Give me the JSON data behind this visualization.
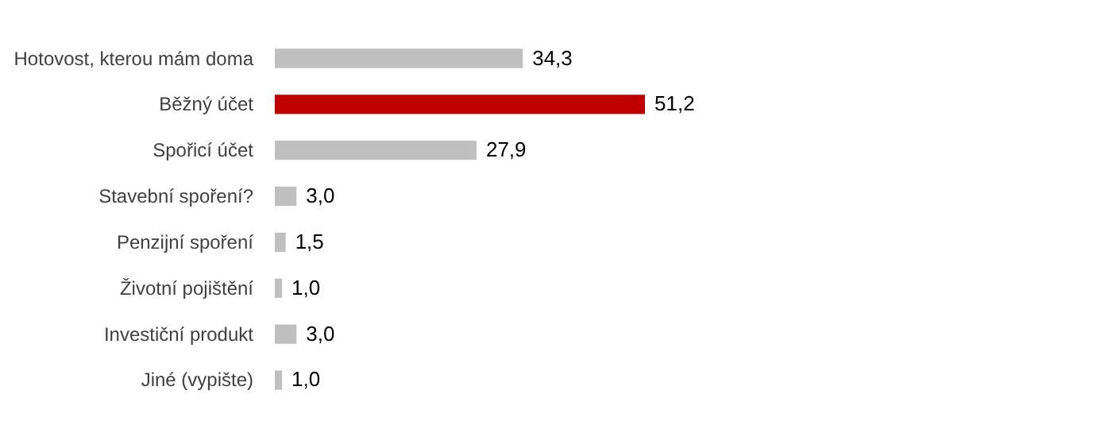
{
  "chart_data": {
    "type": "bar",
    "orientation": "horizontal",
    "categories": [
      "Hotovost, kterou mám doma",
      "Běžný účet",
      "Spořicí účet",
      "Stavební spoření?",
      "Penzijní spoření",
      "Životní pojištění",
      "Investiční produkt",
      "Jiné (vypište)"
    ],
    "values": [
      34.3,
      51.2,
      27.9,
      3.0,
      1.5,
      1.0,
      3.0,
      1.0
    ],
    "colors": [
      "#bfbfbf",
      "#c00000",
      "#bfbfbf",
      "#bfbfbf",
      "#bfbfbf",
      "#bfbfbf",
      "#bfbfbf",
      "#bfbfbf"
    ],
    "value_labels": [
      "34,3",
      "51,2",
      "27,9",
      "3,0",
      "1,5",
      "1,0",
      "3,0",
      "1,0"
    ]
  }
}
